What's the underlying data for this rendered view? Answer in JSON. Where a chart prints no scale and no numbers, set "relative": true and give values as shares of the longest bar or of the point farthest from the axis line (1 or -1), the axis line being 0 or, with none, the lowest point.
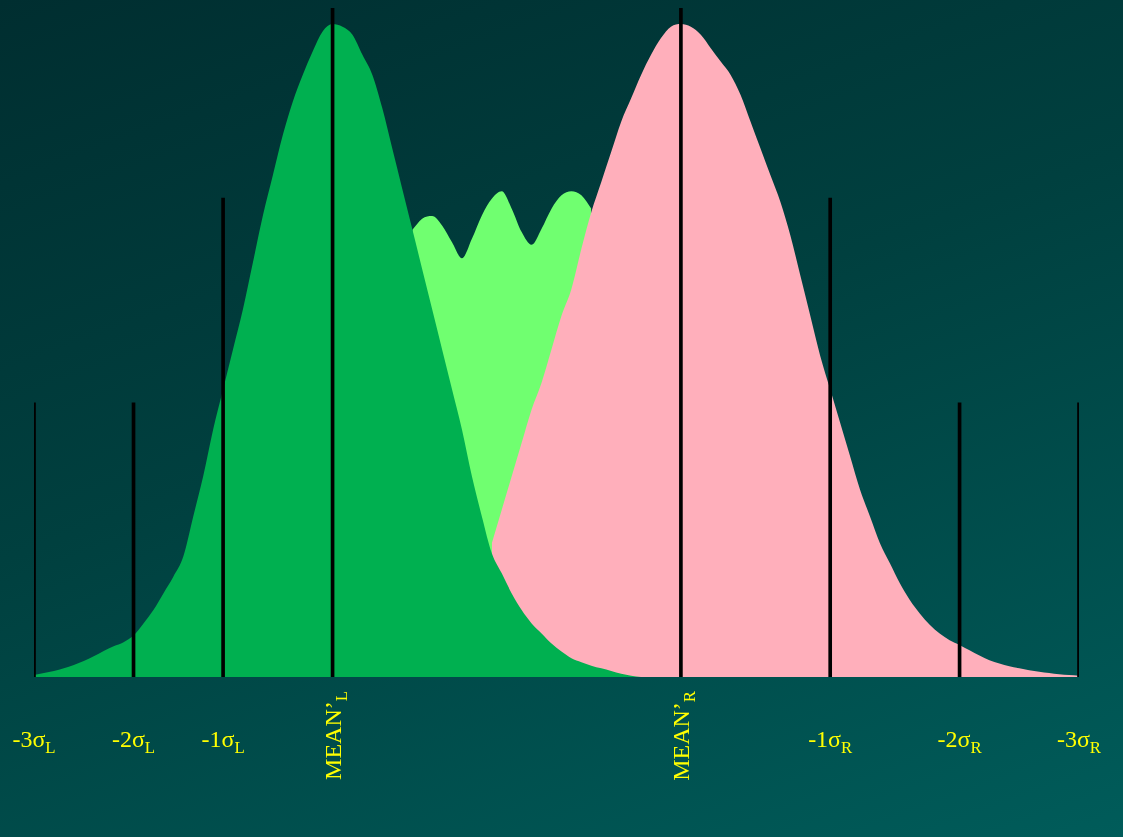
{
  "chart_data": {
    "type": "area",
    "relative": true,
    "categories": [
      "-3σ$_{L}$",
      null,
      null,
      null,
      null,
      null,
      null,
      null,
      null,
      null,
      "-2σ$_{L}$",
      null,
      null,
      null,
      null,
      null,
      null,
      null,
      null,
      "-1σ$_{L}$",
      null,
      null,
      null,
      null,
      null,
      null,
      null,
      null,
      null,
      null,
      "MEAN’$_{L}$",
      null,
      null,
      null,
      null,
      null,
      null,
      null,
      null,
      null,
      null,
      null,
      null,
      null,
      null,
      null,
      null,
      null,
      null,
      null,
      null,
      null,
      null,
      null,
      null,
      null,
      null,
      null,
      null,
      null,
      null,
      null,
      null,
      null,
      null,
      "MEAN’$_{R}$",
      null,
      null,
      null,
      null,
      null,
      null,
      null,
      null,
      null,
      null,
      null,
      null,
      null,
      null,
      "-1σ$_{R}$",
      null,
      null,
      null,
      null,
      null,
      null,
      null,
      null,
      null,
      null,
      null,
      null,
      "-2σ$_{R}$",
      null,
      null,
      null,
      null,
      null,
      null,
      null,
      null,
      null,
      null,
      null,
      "-3σ$_{R}$"
    ],
    "series": [
      {
        "color": "#70ff70",
        "values": [
          null,
          null,
          null,
          null,
          null,
          null,
          null,
          null,
          null,
          null,
          null,
          null,
          null,
          null,
          null,
          null,
          null,
          null,
          null,
          null,
          null,
          null,
          null,
          null,
          null,
          null,
          null,
          null,
          null,
          null,
          null,
          null,
          null,
          null,
          null,
          null,
          null,
          null,
          0.668,
          0.685,
          0.689,
          0.675,
          0.65,
          0.626,
          0.655,
          0.69,
          0.715,
          0.726,
          0.7,
          0.665,
          0.646,
          0.67,
          0.7,
          0.72,
          0.726,
          0.72,
          0.7,
          null,
          null,
          null,
          null,
          null,
          null,
          null,
          null,
          null,
          null,
          null,
          null,
          null,
          null,
          null,
          null,
          null,
          null,
          null,
          null,
          null,
          null,
          null,
          null,
          null,
          null,
          null,
          null,
          null,
          null,
          null,
          null,
          null,
          null,
          null,
          null,
          null,
          null,
          null,
          null,
          null,
          null,
          null,
          null,
          null,
          null,
          null,
          null,
          null
        ]
      },
      {
        "color": "#ffafbb",
        "values": [
          null,
          null,
          null,
          null,
          null,
          null,
          null,
          null,
          null,
          null,
          null,
          null,
          null,
          null,
          null,
          null,
          null,
          null,
          null,
          null,
          null,
          null,
          null,
          null,
          null,
          null,
          null,
          null,
          null,
          null,
          null,
          null,
          null,
          null,
          null,
          null,
          null,
          null,
          null,
          null,
          null,
          null,
          null,
          null,
          null,
          null,
          0.2,
          0.25,
          0.3,
          0.35,
          0.4,
          0.44,
          0.49,
          0.54,
          0.58,
          0.64,
          0.695,
          0.74,
          0.785,
          0.83,
          0.865,
          0.9,
          0.93,
          0.955,
          0.972,
          0.976,
          0.972,
          0.96,
          0.94,
          0.92,
          0.9,
          0.87,
          0.83,
          0.79,
          0.75,
          0.71,
          0.66,
          0.6,
          0.54,
          0.48,
          0.43,
          0.38,
          0.33,
          0.28,
          0.24,
          0.2,
          0.17,
          0.14,
          0.115,
          0.095,
          0.078,
          0.065,
          0.055,
          0.048,
          0.04,
          0.032,
          0.025,
          0.02,
          0.016,
          0.013,
          0.01,
          0.008,
          0.006,
          0.004,
          0.003,
          0.002
        ]
      },
      {
        "color": "#00b050",
        "values": [
          0.003,
          0.006,
          0.009,
          0.013,
          0.018,
          0.024,
          0.031,
          0.039,
          0.046,
          0.052,
          0.062,
          0.08,
          0.1,
          0.125,
          0.15,
          0.18,
          0.24,
          0.3,
          0.37,
          0.43,
          0.49,
          0.55,
          0.62,
          0.69,
          0.75,
          0.81,
          0.86,
          0.9,
          0.935,
          0.965,
          0.976,
          0.972,
          0.96,
          0.93,
          0.9,
          0.85,
          0.79,
          0.73,
          0.67,
          0.61,
          0.55,
          0.49,
          0.43,
          0.37,
          0.3,
          0.24,
          0.185,
          0.155,
          0.125,
          0.1,
          0.08,
          0.065,
          0.05,
          0.038,
          0.028,
          0.022,
          0.017,
          0.013,
          0.009,
          0.005,
          0.002,
          0,
          null,
          null,
          null,
          null,
          null,
          null,
          null,
          null,
          null,
          null,
          null,
          null,
          null,
          null,
          null,
          null,
          null,
          null,
          null,
          null,
          null,
          null,
          null,
          null,
          null,
          null,
          null,
          null,
          null,
          null,
          null,
          null,
          null,
          null,
          null,
          null,
          null,
          null,
          null,
          null,
          null,
          null,
          null,
          null
        ]
      },
      {
        "type": "bar",
        "color": "#000000",
        "values": [
          0.41,
          null,
          null,
          null,
          null,
          null,
          null,
          null,
          null,
          null,
          0.41,
          null,
          null,
          null,
          null,
          null,
          null,
          null,
          null,
          0.716,
          null,
          null,
          null,
          null,
          null,
          null,
          null,
          null,
          null,
          null,
          1,
          null,
          null,
          null,
          null,
          null,
          null,
          null,
          null,
          null,
          null,
          null,
          null,
          null,
          null,
          null,
          null,
          null,
          null,
          null,
          null,
          null,
          null,
          null,
          null,
          null,
          null,
          null,
          null,
          null,
          null,
          null,
          null,
          null,
          null,
          1,
          null,
          null,
          null,
          null,
          null,
          null,
          null,
          null,
          null,
          null,
          null,
          null,
          null,
          null,
          0.716,
          null,
          null,
          null,
          null,
          null,
          null,
          null,
          null,
          null,
          null,
          null,
          null,
          0.41,
          null,
          null,
          null,
          null,
          null,
          null,
          null,
          null,
          null,
          null,
          null,
          0.41
        ]
      }
    ]
  }
}
